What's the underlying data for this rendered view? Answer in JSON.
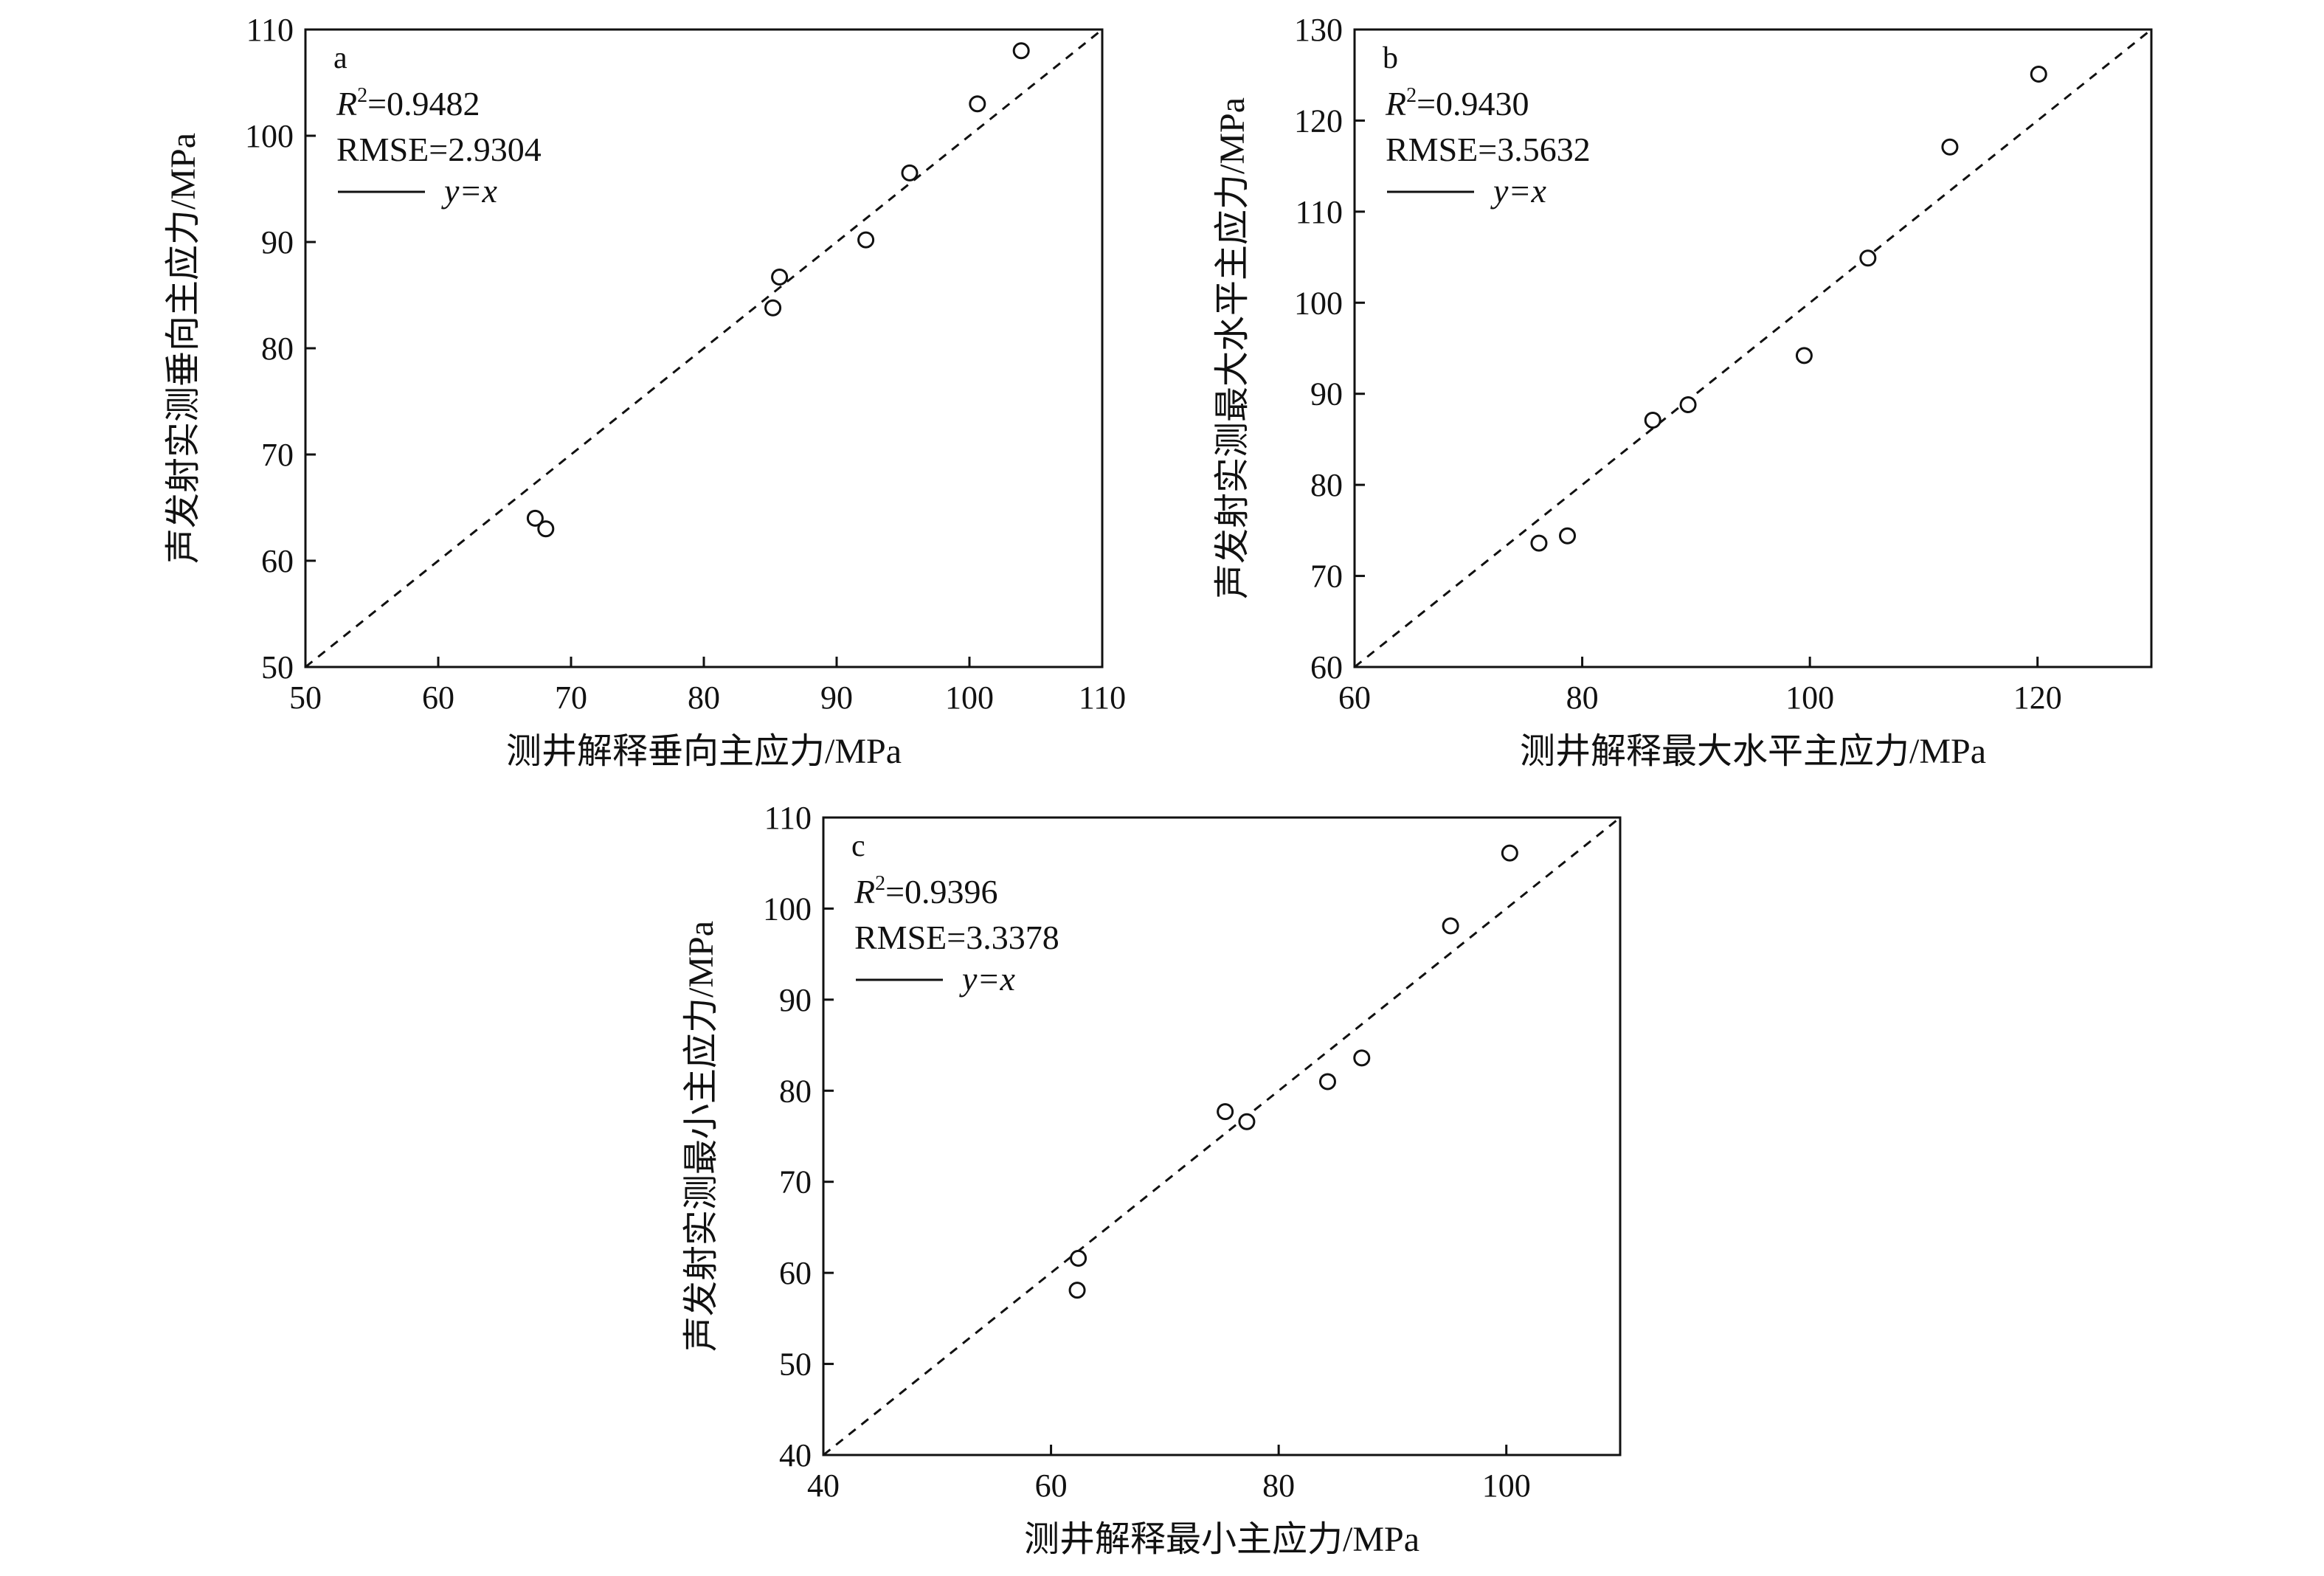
{
  "chart_data": [
    {
      "type": "scatter",
      "panel_label": "a",
      "xlabel": "测井解释垂向主应力/MPa",
      "ylabel": "声发射实测垂向主应力/MPa",
      "xlim": [
        50,
        110
      ],
      "ylim": [
        50,
        110
      ],
      "xticks": [
        50,
        60,
        70,
        80,
        90,
        100,
        110
      ],
      "yticks": [
        50,
        60,
        70,
        80,
        90,
        100,
        110
      ],
      "r2_prefix": "R",
      "r2_sup": "2",
      "r2_value": "=0.9482",
      "rmse_text": "RMSE=2.9304",
      "legend_label": "y=x",
      "points": [
        {
          "x": 67.3,
          "y": 64.0
        },
        {
          "x": 68.1,
          "y": 63.0
        },
        {
          "x": 85.2,
          "y": 83.8
        },
        {
          "x": 85.7,
          "y": 86.7
        },
        {
          "x": 92.2,
          "y": 90.2
        },
        {
          "x": 95.5,
          "y": 96.5
        },
        {
          "x": 100.6,
          "y": 103.0
        },
        {
          "x": 103.9,
          "y": 108.0
        }
      ]
    },
    {
      "type": "scatter",
      "panel_label": "b",
      "xlabel": "测井解释最大水平主应力/MPa",
      "ylabel": "声发射实测最大水平主应力/MPa",
      "xlim": [
        60,
        130
      ],
      "ylim": [
        60,
        130
      ],
      "xticks": [
        60,
        80,
        100,
        120
      ],
      "yticks": [
        60,
        70,
        80,
        90,
        100,
        110,
        120,
        130
      ],
      "r2_prefix": "R",
      "r2_sup": "2",
      "r2_value": "=0.9430",
      "rmse_text": "RMSE=3.5632",
      "legend_label": "y=x",
      "points": [
        {
          "x": 76.2,
          "y": 73.6
        },
        {
          "x": 78.7,
          "y": 74.4
        },
        {
          "x": 86.2,
          "y": 87.1
        },
        {
          "x": 89.3,
          "y": 88.8
        },
        {
          "x": 99.5,
          "y": 94.2
        },
        {
          "x": 105.1,
          "y": 104.9
        },
        {
          "x": 112.3,
          "y": 117.1
        },
        {
          "x": 120.1,
          "y": 125.1
        }
      ]
    },
    {
      "type": "scatter",
      "panel_label": "c",
      "xlabel": "测井解释最小主应力/MPa",
      "ylabel": "声发射实测最小主应力/MPa",
      "xlim": [
        40,
        110
      ],
      "ylim": [
        40,
        110
      ],
      "xticks": [
        40,
        60,
        80,
        100
      ],
      "yticks": [
        40,
        50,
        60,
        70,
        80,
        90,
        100,
        110
      ],
      "r2_prefix": "R",
      "r2_sup": "2",
      "r2_value": "=0.9396",
      "rmse_text": "RMSE=3.3378",
      "legend_label": "y=x",
      "points": [
        {
          "x": 62.3,
          "y": 58.1
        },
        {
          "x": 62.4,
          "y": 61.6
        },
        {
          "x": 75.3,
          "y": 77.7
        },
        {
          "x": 77.2,
          "y": 76.6
        },
        {
          "x": 84.3,
          "y": 81.0
        },
        {
          "x": 87.3,
          "y": 83.6
        },
        {
          "x": 95.1,
          "y": 98.1
        },
        {
          "x": 100.3,
          "y": 106.1
        }
      ]
    }
  ]
}
